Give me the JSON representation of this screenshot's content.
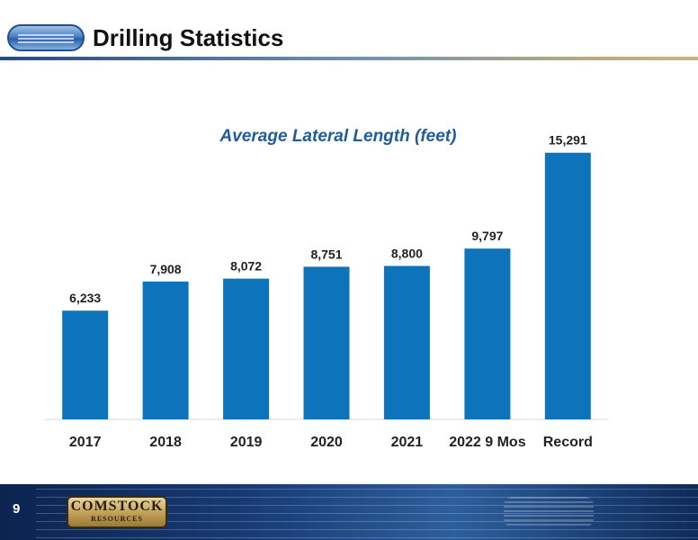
{
  "header": {
    "title": "Drilling Statistics",
    "logo_icon": "crk-logo-icon"
  },
  "footer": {
    "page_number": "9",
    "logo_line1": "COMSTOCK",
    "logo_line2": "RESOURCES",
    "background_color": "#173a74"
  },
  "chart_data": {
    "type": "bar",
    "title": "Average Lateral Length  (feet)",
    "categories": [
      "2017",
      "2018",
      "2019",
      "2020",
      "2021",
      "2022 9 Mos",
      "Record"
    ],
    "values": [
      6233,
      7908,
      8072,
      8751,
      8800,
      9797,
      15291
    ],
    "data_labels": [
      "6,233",
      "7,908",
      "8,072",
      "8,751",
      "8,800",
      "9,797",
      "15,291"
    ],
    "xlabel": "",
    "ylabel": "",
    "ylim": [
      0,
      16000
    ],
    "grid": false,
    "legend": false,
    "bar_color": "#0d73ba"
  }
}
